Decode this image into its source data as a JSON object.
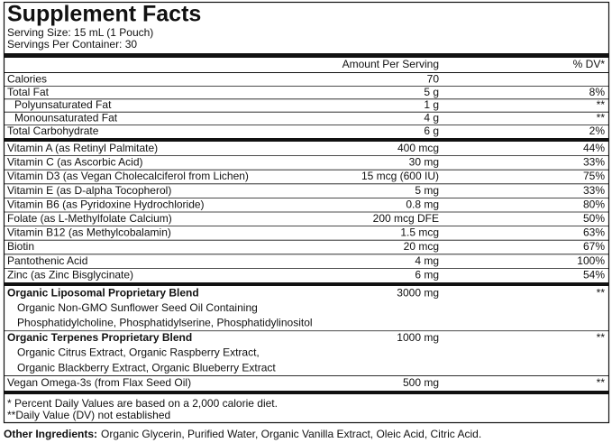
{
  "header": {
    "title": "Supplement Facts",
    "serving_size": "Serving Size: 15 mL (1 Pouch)",
    "servings_per_container": "Servings Per Container: 30"
  },
  "columns": {
    "amount": "Amount Per Serving",
    "dv": "% DV*"
  },
  "sections": [
    {
      "rows": [
        {
          "name": "Calories",
          "amount": "70"
        },
        {
          "name": "Total Fat",
          "amount": "5 g",
          "dv": "8%"
        },
        {
          "name": "Polyunsaturated Fat",
          "amount": "1 g",
          "dv": "**"
        },
        {
          "name": "Monounsaturated Fat",
          "amount": "4 g",
          "dv": "**"
        },
        {
          "name": "Total Carbohydrate",
          "amount": "6 g",
          "dv": "2%"
        }
      ]
    },
    {
      "rows": [
        {
          "name": "Vitamin A (as Retinyl Palmitate)",
          "amount": "400 mcg",
          "dv": "44%"
        },
        {
          "name": "Vitamin C (as Ascorbic Acid)",
          "amount": "30 mg",
          "dv": "33%"
        },
        {
          "name": "Vitamin D3 (as Vegan Cholecalciferol from Lichen)",
          "amount": "15 mcg (600 IU)",
          "dv": "75%"
        },
        {
          "name": "Vitamin E (as D-alpha Tocopherol)",
          "amount": "5 mg",
          "dv": "33%"
        },
        {
          "name": "Vitamin B6 (as Pyridoxine Hydrochloride)",
          "amount": "0.8 mg",
          "dv": "80%"
        },
        {
          "name": "Folate (as L-Methylfolate Calcium)",
          "amount": "200 mcg DFE",
          "dv": "50%"
        },
        {
          "name": "Vitamin B12 (as Methylcobalamin)",
          "amount": "1.5 mcg",
          "dv": "63%"
        },
        {
          "name": "Biotin",
          "amount": "20 mcg",
          "dv": "67%"
        },
        {
          "name": "Pantothenic Acid",
          "amount": "4 mg",
          "dv": "100%"
        },
        {
          "name": "Zinc (as Zinc Bisglycinate)",
          "amount": "6 mg",
          "dv": "54%"
        }
      ]
    },
    {
      "rows": [
        {
          "name": "Organic Liposomal Proprietary Blend",
          "amount": "3000 mg",
          "dv": "**",
          "detail": [
            "Organic Non-GMO Sunflower Seed Oil Containing",
            "Phosphatidylcholine, Phosphatidylserine, Phosphatidylinositol"
          ]
        },
        {
          "name": "Organic Terpenes Proprietary Blend",
          "amount": "1000 mg",
          "dv": "**",
          "detail": [
            "Organic Citrus Extract, Organic Raspberry Extract,",
            "Organic Blackberry Extract, Organic Blueberry Extract"
          ]
        },
        {
          "name": "Vegan Omega-3s (from Flax Seed Oil)",
          "amount": "500 mg",
          "dv": "**"
        }
      ]
    }
  ],
  "footnotes": [
    "* Percent Daily Values are based on a 2,000 calorie diet.",
    "**Daily Value (DV) not established"
  ],
  "other_ingredients": {
    "label": "Other Ingredients:",
    "text": "Organic Glycerin, Purified Water, Organic Vanilla Extract, Oleic Acid, Citric Acid."
  }
}
